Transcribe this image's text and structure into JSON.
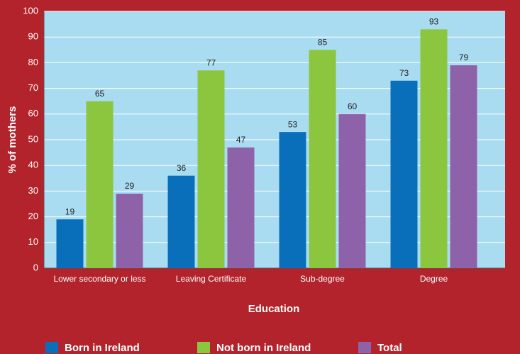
{
  "chart_data": {
    "type": "bar",
    "x_label": "Education",
    "y_label": "% of mothers",
    "categories": [
      "Lower secondary or less",
      "Leaving Certificate",
      "Sub-degree",
      "Degree"
    ],
    "series": [
      {
        "name": "Born in Ireland",
        "color": "#0a6fba",
        "values": [
          19,
          36,
          53,
          73
        ]
      },
      {
        "name": "Not born in Ireland",
        "color": "#8cc63f",
        "values": [
          65,
          77,
          85,
          93
        ]
      },
      {
        "name": "Total",
        "color": "#8e62a9",
        "values": [
          29,
          47,
          60,
          79
        ]
      }
    ],
    "ylim": [
      0,
      100
    ],
    "yticks": [
      0,
      10,
      20,
      30,
      40,
      50,
      60,
      70,
      80,
      90,
      100
    ],
    "grid": true,
    "legend": "bottom"
  }
}
